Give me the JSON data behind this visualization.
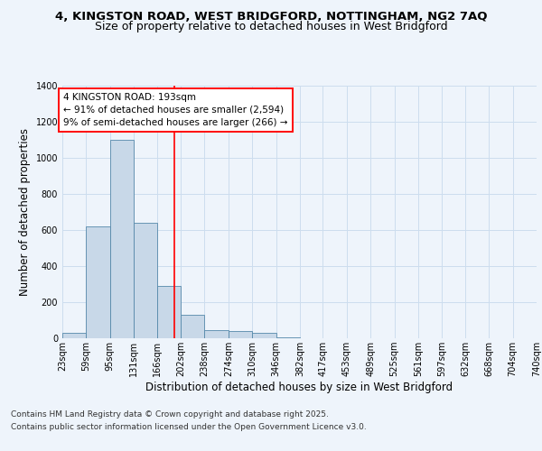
{
  "title_line1": "4, KINGSTON ROAD, WEST BRIDGFORD, NOTTINGHAM, NG2 7AQ",
  "title_line2": "Size of property relative to detached houses in West Bridgford",
  "xlabel": "Distribution of detached houses by size in West Bridgford",
  "ylabel": "Number of detached properties",
  "bar_edges": [
    23,
    59,
    95,
    131,
    166,
    202,
    238,
    274,
    310,
    346,
    382,
    417,
    453,
    489,
    525,
    561,
    597,
    632,
    668,
    704,
    740
  ],
  "bar_heights": [
    30,
    620,
    1100,
    640,
    290,
    130,
    45,
    40,
    30,
    5,
    0,
    0,
    0,
    0,
    0,
    0,
    0,
    0,
    0,
    0
  ],
  "bar_color": "#c8d8e8",
  "bar_edgecolor": "#5588aa",
  "grid_color": "#ccddee",
  "background_color": "#eef4fb",
  "red_line_x": 193,
  "annotation_text": "4 KINGSTON ROAD: 193sqm\n← 91% of detached houses are smaller (2,594)\n9% of semi-detached houses are larger (266) →",
  "annotation_box_color": "white",
  "annotation_box_edgecolor": "red",
  "ylim": [
    0,
    1400
  ],
  "yticks": [
    0,
    200,
    400,
    600,
    800,
    1000,
    1200,
    1400
  ],
  "footer_line1": "Contains HM Land Registry data © Crown copyright and database right 2025.",
  "footer_line2": "Contains public sector information licensed under the Open Government Licence v3.0.",
  "title_fontsize": 9.5,
  "title2_fontsize": 9,
  "axis_label_fontsize": 8.5,
  "tick_fontsize": 7,
  "annotation_fontsize": 7.5,
  "footer_fontsize": 6.5
}
